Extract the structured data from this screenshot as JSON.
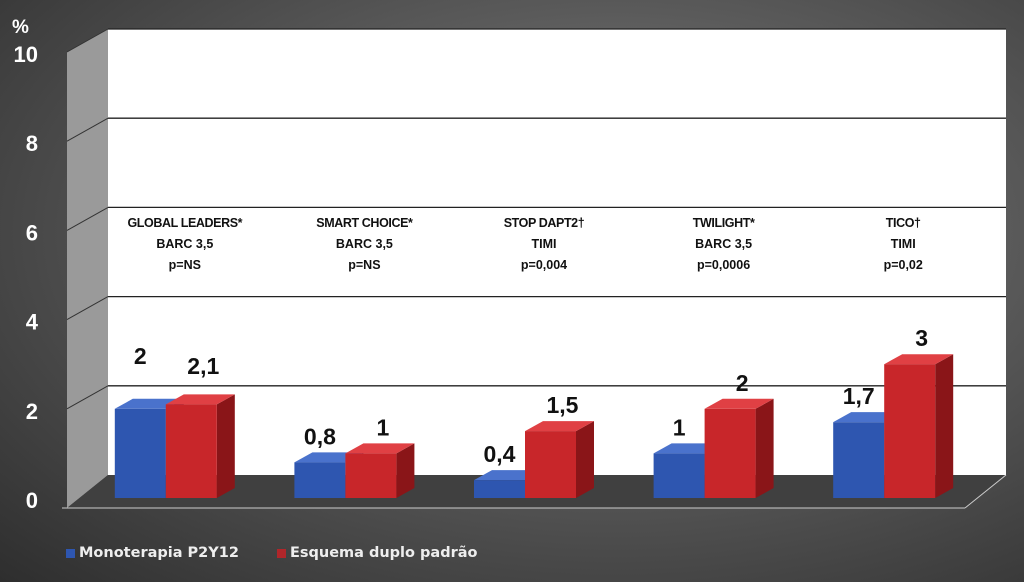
{
  "chart_data": {
    "type": "bar",
    "ylabel": "%",
    "ylim": [
      0,
      10
    ],
    "yticks": [
      "0",
      "2",
      "4",
      "6",
      "8",
      "10"
    ],
    "grid": true,
    "legend_position": "bottom-left",
    "categories": [
      {
        "name": "GLOBAL LEADERS",
        "mark": "*",
        "endpoint": "BARC 3,5",
        "p": "p=NS"
      },
      {
        "name": "SMART CHOICE",
        "mark": "*",
        "endpoint": "BARC 3,5",
        "p": "p=NS"
      },
      {
        "name": "STOP DAPT2",
        "mark": "†",
        "endpoint": "TIMI",
        "p": "p=0,004"
      },
      {
        "name": "TWILIGHT",
        "mark": "*",
        "endpoint": "BARC 3,5",
        "p": "p=0,0006"
      },
      {
        "name": "TICO",
        "mark": "†",
        "endpoint": "TIMI",
        "p": "p=0,02"
      }
    ],
    "series": [
      {
        "name": "Monoterapia P2Y12",
        "color": "#2e56b0",
        "values": [
          2,
          0.8,
          0.4,
          1,
          1.7
        ],
        "labels": [
          "2",
          "0,8",
          "0,4",
          "1",
          "1,7"
        ]
      },
      {
        "name": "Esquema duplo padrão",
        "color": "#c8262a",
        "values": [
          2.1,
          1,
          1.5,
          2,
          3
        ],
        "labels": [
          "2,1",
          "1",
          "1,5",
          "2",
          "3"
        ]
      }
    ]
  }
}
